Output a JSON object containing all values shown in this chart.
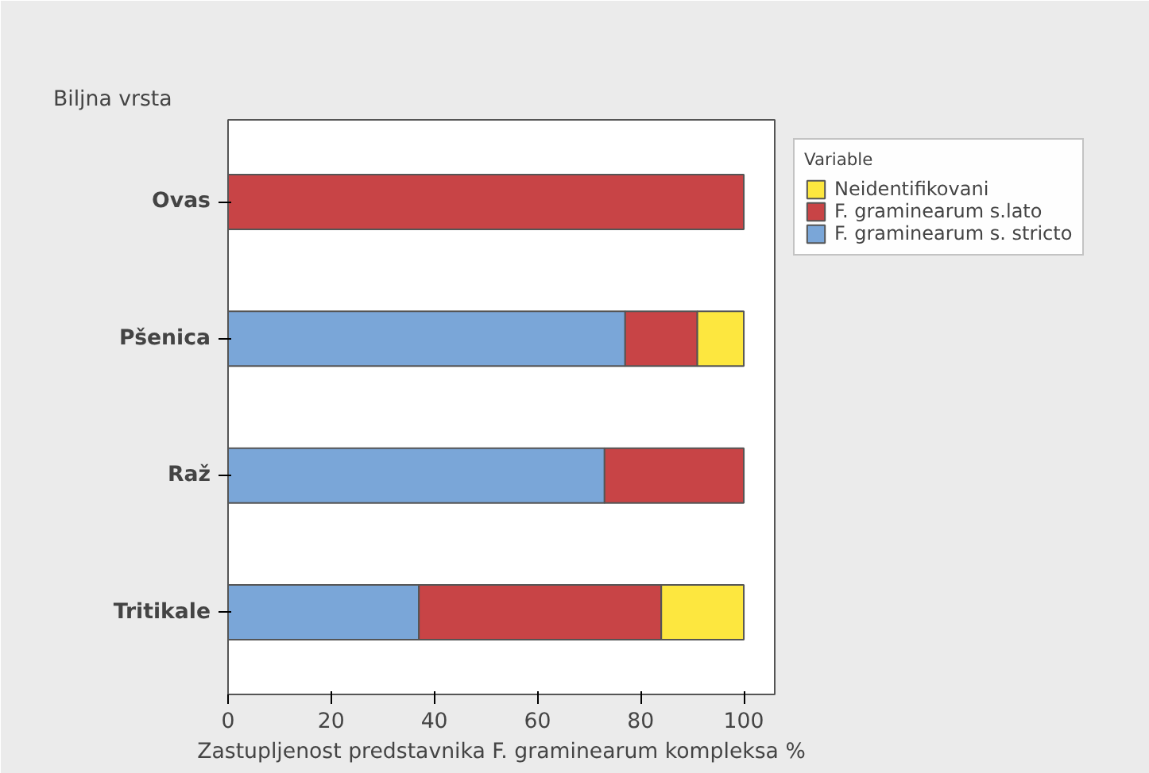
{
  "chart_data": {
    "type": "bar",
    "orientation": "horizontal",
    "stacked": true,
    "ylabel": "Biljna vrsta",
    "xlabel": "Zastupljenost predstavnika F. graminearum kompleksa %",
    "legend_title": "Variable",
    "categories": [
      "Ovas",
      "Pšenica",
      "Raž",
      "Tritikale"
    ],
    "series": [
      {
        "name": "F. graminearum s. stricto",
        "color": "#7aa6d8",
        "values": [
          0,
          77,
          73,
          37
        ]
      },
      {
        "name": "F. graminearum s.lato",
        "color": "#c84446",
        "values": [
          100,
          14,
          27,
          47
        ]
      },
      {
        "name": "Neidentifikovani",
        "color": "#fde73f",
        "values": [
          0,
          9,
          0,
          16
        ]
      }
    ],
    "xlim": [
      0,
      106
    ],
    "xticks": [
      0,
      20,
      40,
      60,
      80,
      100
    ],
    "grid": false,
    "legend": "right"
  }
}
